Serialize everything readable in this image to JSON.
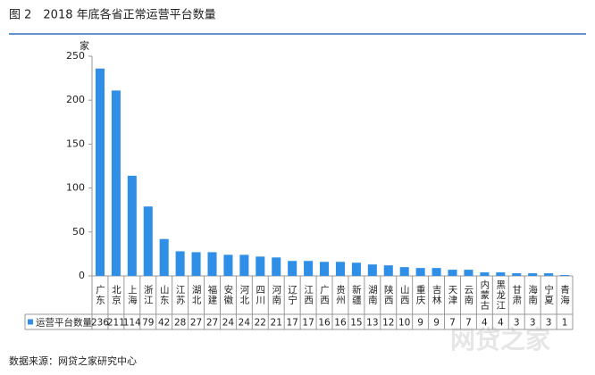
{
  "chart_data": {
    "type": "bar",
    "title": "图 2　2018 年底各省正常运营平台数量",
    "y_label": "家",
    "source": "数据来源：网贷之家研究中心",
    "watermark": "网贷之家",
    "categories": [
      "广东",
      "北京",
      "上海",
      "浙江",
      "山东",
      "江苏",
      "湖北",
      "福建",
      "安徽",
      "河北",
      "四川",
      "河南",
      "辽宁",
      "江西",
      "广西",
      "贵州",
      "新疆",
      "湖南",
      "陕西",
      "山西",
      "重庆",
      "吉林",
      "天津",
      "云南",
      "内蒙古",
      "黑龙江",
      "甘肃",
      "海南",
      "宁夏",
      "青海"
    ],
    "series": [
      {
        "name": "运营平台数量",
        "color": "#2f8fe6",
        "values": [
          236,
          211,
          114,
          79,
          42,
          28,
          27,
          27,
          24,
          24,
          22,
          21,
          17,
          17,
          16,
          16,
          15,
          13,
          12,
          10,
          9,
          9,
          7,
          7,
          4,
          4,
          3,
          3,
          3,
          1
        ]
      }
    ],
    "ylim": [
      0,
      250
    ],
    "yticks": [
      0,
      50,
      100,
      150,
      200,
      250
    ],
    "grid": false
  }
}
